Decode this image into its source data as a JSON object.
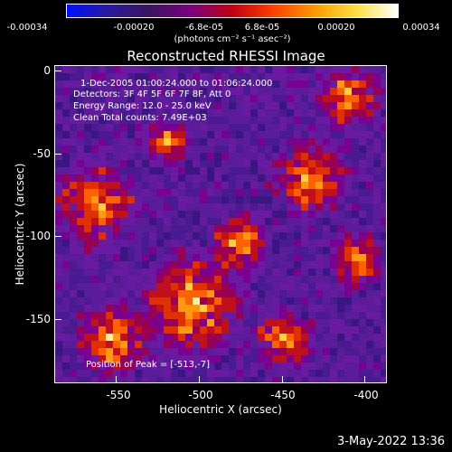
{
  "colorbar": {
    "ticks": [
      "-0.00034",
      "-0.00020",
      "-6.8e-05",
      "6.8e-05",
      "0.00020",
      "0.00034"
    ],
    "unit": "(photons cm⁻² s⁻¹ asec⁻²)",
    "colormap": [
      "#0010ff",
      "#2a1aa0",
      "#3a1460",
      "#7a0080",
      "#c00010",
      "#ff4000",
      "#ff9a00",
      "#ffe040",
      "#ffffff"
    ]
  },
  "plot": {
    "title": "Reconstructed RHESSI Image",
    "info_time": "1-Dec-2005 01:00:24.000 to 01:06:24.000",
    "info_detectors": "Detectors: 3F 4F 5F 6F 7F 8F, Att 0",
    "info_energy": "Energy Range: 12.0 - 25.0 keV",
    "info_clean": "Clean     Total counts: 7.49E+03",
    "peak": "Position of Peak = [-513,-7]",
    "x_title": "Heliocentric X (arcsec)",
    "y_title": "Heliocentric Y (arcsec)",
    "x_ticks": [
      "-550",
      "-500",
      "-450",
      "-400"
    ],
    "y_ticks": [
      "0",
      "-50",
      "-100",
      "-150"
    ]
  },
  "footer": {
    "date": "3-May-2022 13:36"
  }
}
